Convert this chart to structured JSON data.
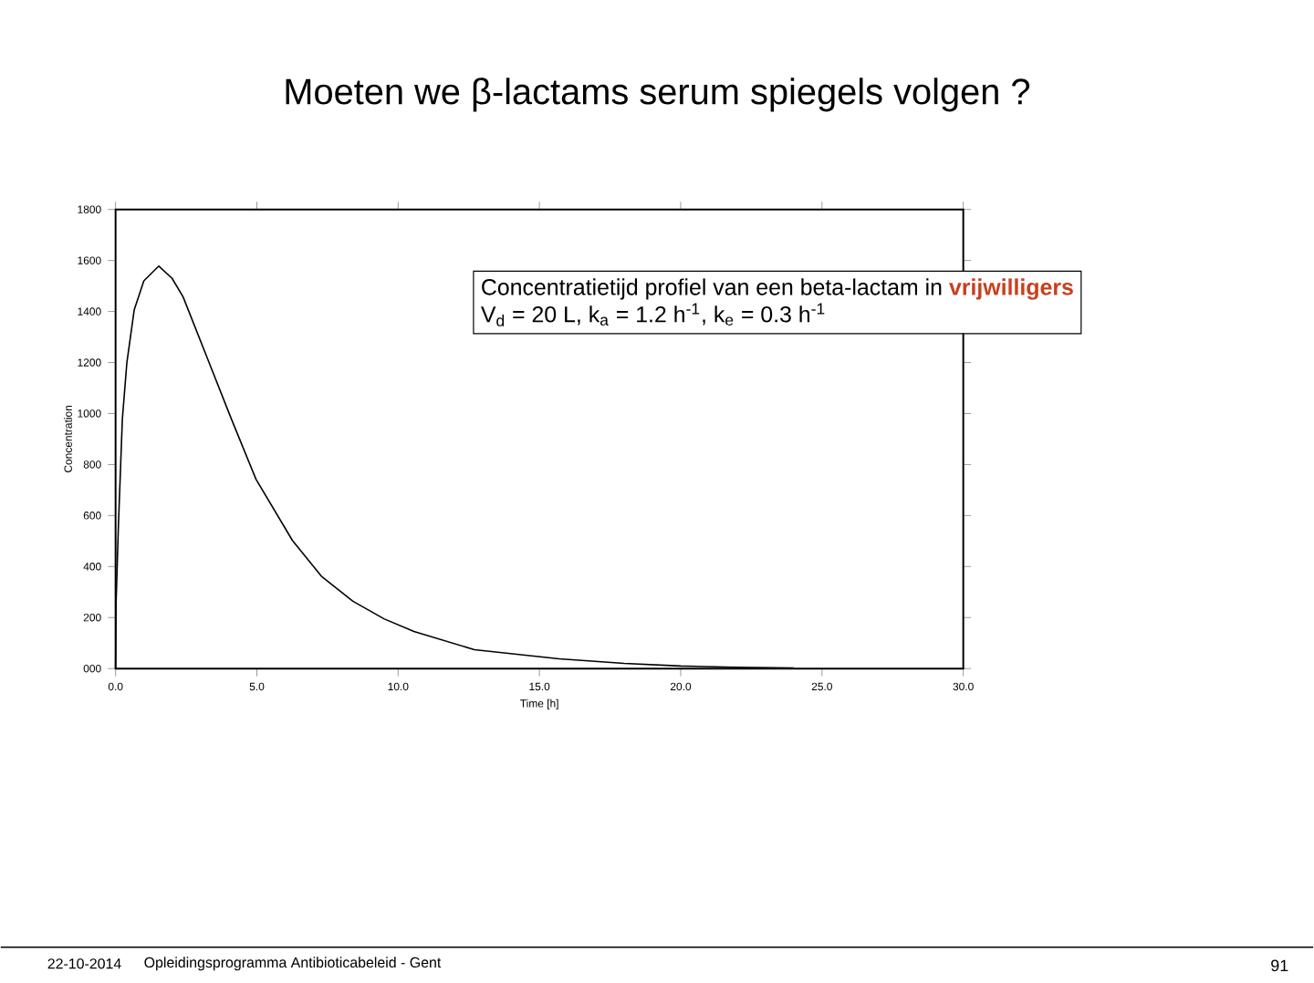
{
  "chart_data": {
    "type": "line",
    "title": "Moeten we β-lactams serum spiegels volgen ?",
    "xlabel": "Time [h]",
    "ylabel": "Concentration",
    "x": [
      0,
      0.02,
      0.1,
      0.24,
      0.4,
      0.66,
      1.0,
      1.53,
      2.0,
      2.39,
      3.25,
      4.1,
      4.97,
      6.26,
      7.3,
      8.4,
      9.5,
      10.56,
      12.7,
      15.7,
      18,
      20,
      22,
      24
    ],
    "values": [
      0,
      264,
      560,
      978,
      1200,
      1407,
      1520,
      1578,
      1530,
      1457,
      1216,
      978,
      742,
      502,
      360,
      264,
      195,
      145,
      74,
      38,
      20,
      10,
      5,
      2
    ],
    "color": "#000000",
    "xlim": [
      0,
      30
    ],
    "ylim": [
      0,
      1800
    ],
    "xticks": [
      {
        "value": 0,
        "label": "0.0"
      },
      {
        "value": 5,
        "label": "5.0"
      },
      {
        "value": 10,
        "label": "10.0"
      },
      {
        "value": 15,
        "label": "15.0"
      },
      {
        "value": 20,
        "label": "20.0"
      },
      {
        "value": 25,
        "label": "25.0"
      },
      {
        "value": 30,
        "label": "30.0"
      }
    ],
    "yticks": [
      {
        "value": 0,
        "label": "000"
      },
      200,
      400,
      600,
      800,
      1000,
      1200,
      1400,
      1600,
      1800
    ],
    "annotations": [
      "Concentratietijd profiel van een beta-lactam in",
      "vrijwilligers",
      "V$_{d}$ = 20 L, k$_{a}$ = 1.2 h$^{-1}$, k$_{e}$ = 0.3 h$^{-1}$",
      "22-10-2014",
      "Opleidingsprogramma Antibioticabeleid - Gent",
      "91"
    ]
  }
}
